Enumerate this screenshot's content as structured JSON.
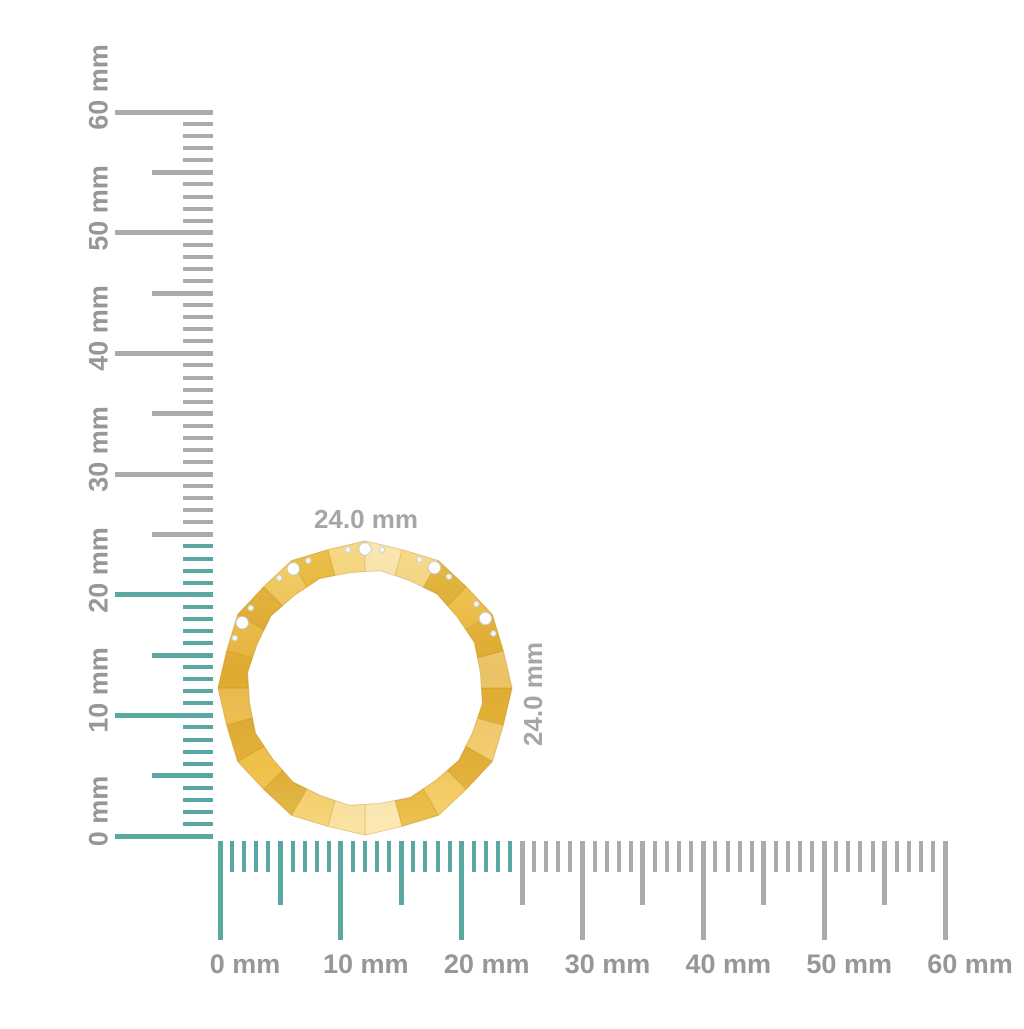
{
  "page": {
    "background": "#FFFFFF"
  },
  "colors": {
    "highlight_teal": "#5AA7A2",
    "tick_gray": "#ABABAB",
    "ruler_label_gray": "#979797",
    "dimension_label_gray": "#A6A6A6",
    "gold_base": "#EFBE42",
    "gold_light": "#FFE9A1",
    "gold_mid": "#E4AE33",
    "gold_dark": "#C98F1F",
    "diamond_fill": "#FDFDFD",
    "diamond_stroke": "#C6CCD4"
  },
  "rulers": {
    "unit": "mm",
    "min_mm": 0,
    "max_mm": 60,
    "minor_step_mm": 1,
    "medium_step_mm": 5,
    "major_step_mm": 10,
    "highlight_until_mm": 24,
    "vertical_labels": [
      "0 mm",
      "10 mm",
      "20 mm",
      "30 mm",
      "40 mm",
      "50 mm",
      "60 mm"
    ],
    "horizontal_labels": [
      "0 mm",
      "10 mm",
      "20 mm",
      "30 mm",
      "40 mm",
      "50 mm",
      "60 mm"
    ]
  },
  "ring": {
    "description": "gold faceted eternity band with diamonds, side profile",
    "width_label": "24.0 mm",
    "height_label": "24.0 mm",
    "outer_diameter_mm": 24.0,
    "diamond_angles_deg": [
      152,
      121,
      90,
      60,
      30
    ]
  }
}
